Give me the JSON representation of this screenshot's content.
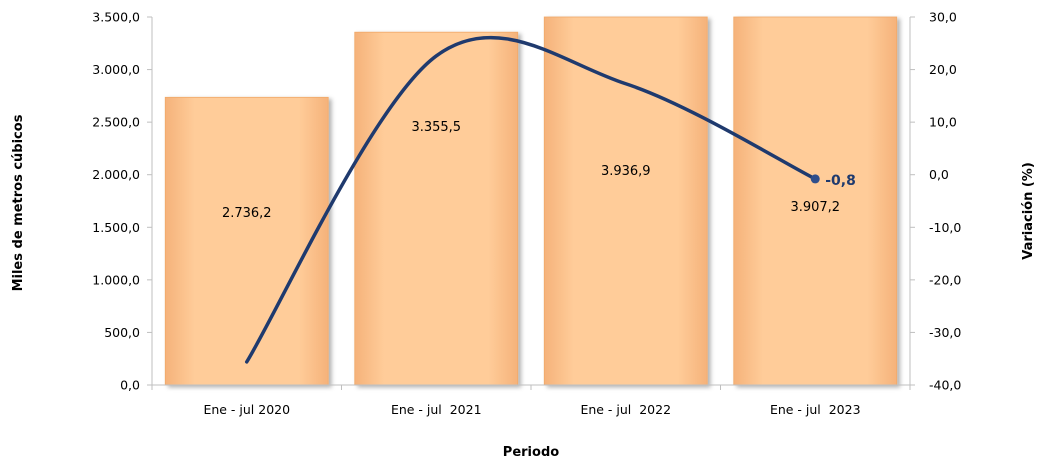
{
  "chart_data": {
    "type": "bar",
    "categories": [
      "Ene - jul 2020",
      "Ene - jul  2021",
      "Ene - jul  2022",
      "Ene - jul  2023"
    ],
    "bar_values": [
      2736.2,
      3355.5,
      3936.9,
      3907.2
    ],
    "bar_labels": [
      "2.736,2",
      "3.355,5",
      "3.936,9",
      "3.907,2"
    ],
    "line_values": [
      -35.6,
      22.6,
      17.3,
      -0.8
    ],
    "line_label": "-0,8",
    "y_left": {
      "label": "Miles de metros cúbicos",
      "range": [
        0,
        3500
      ],
      "ticks": [
        0,
        500,
        1000,
        1500,
        2000,
        2500,
        3000,
        3500
      ],
      "tick_labels": [
        "0,0",
        "500,0",
        "1.000,0",
        "1.500,0",
        "2.000,0",
        "2.500,0",
        "3.000,0",
        "3.500,0"
      ]
    },
    "y_right": {
      "label": "Variación (%)",
      "range": [
        -40,
        30
      ],
      "ticks": [
        -40,
        -30,
        -20,
        -10,
        0,
        10,
        20,
        30
      ],
      "tick_labels": [
        "-40,0",
        "-30,0",
        "-20,0",
        "-10,0",
        "0,0",
        "10,0",
        "20,0",
        "30,0"
      ]
    },
    "xlabel": "Periodo",
    "grid": false,
    "colors": {
      "bar_fill": "#ffcc99",
      "bar_edge": "#f0a868",
      "line": "#1f3a6e",
      "marker": "#2e4e8c"
    }
  }
}
